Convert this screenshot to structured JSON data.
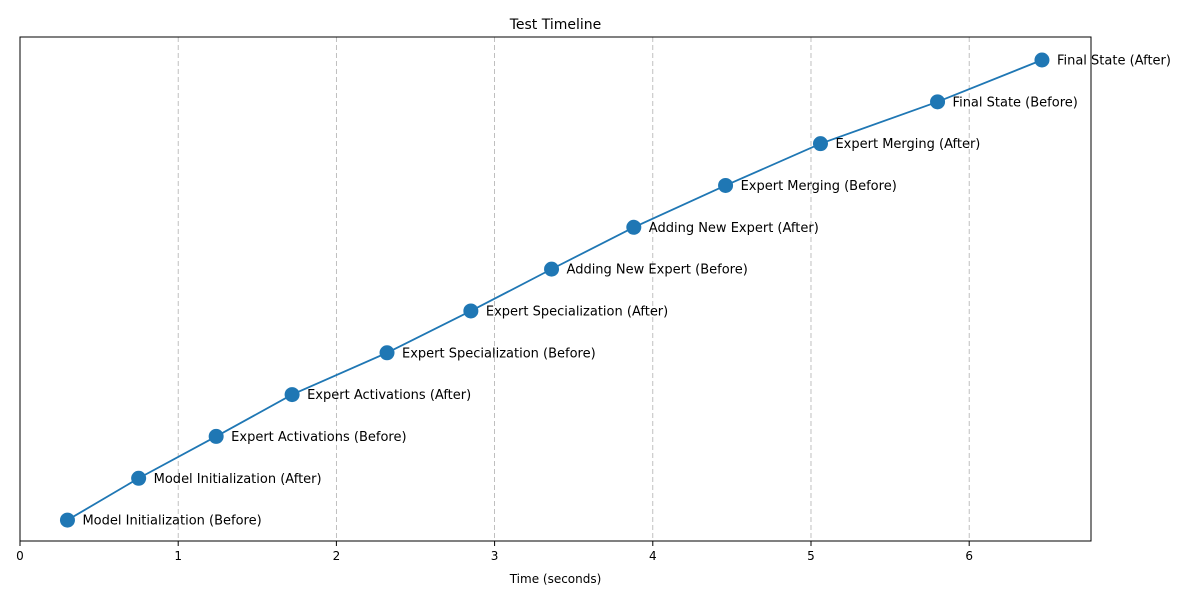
{
  "chart_data": {
    "type": "line",
    "title": "Test Timeline",
    "xlabel": "Time (seconds)",
    "ylabel": "",
    "xlim": [
      0,
      6.77
    ],
    "ylim": [
      -0.5,
      11.55
    ],
    "xticks": [
      0,
      1,
      2,
      3,
      4,
      5,
      6
    ],
    "grid": {
      "x": true,
      "y": false
    },
    "line_color": "#1f77b4",
    "marker_color": "#1f77b4",
    "grid_color": "#b0b0b0",
    "points": [
      {
        "x": 0.3,
        "y": 0,
        "label": "Model Initialization (Before)"
      },
      {
        "x": 0.75,
        "y": 1,
        "label": "Model Initialization (After)"
      },
      {
        "x": 1.24,
        "y": 2,
        "label": "Expert Activations (Before)"
      },
      {
        "x": 1.72,
        "y": 3,
        "label": "Expert Activations (After)"
      },
      {
        "x": 2.32,
        "y": 4,
        "label": "Expert Specialization (Before)"
      },
      {
        "x": 2.85,
        "y": 5,
        "label": "Expert Specialization (After)"
      },
      {
        "x": 3.36,
        "y": 6,
        "label": "Adding New Expert (Before)"
      },
      {
        "x": 3.88,
        "y": 7,
        "label": "Adding New Expert (After)"
      },
      {
        "x": 4.46,
        "y": 8,
        "label": "Expert Merging (Before)"
      },
      {
        "x": 5.06,
        "y": 9,
        "label": "Expert Merging (After)"
      },
      {
        "x": 5.8,
        "y": 10,
        "label": "Final State (Before)"
      },
      {
        "x": 6.46,
        "y": 11,
        "label": "Final State (After)"
      }
    ]
  }
}
